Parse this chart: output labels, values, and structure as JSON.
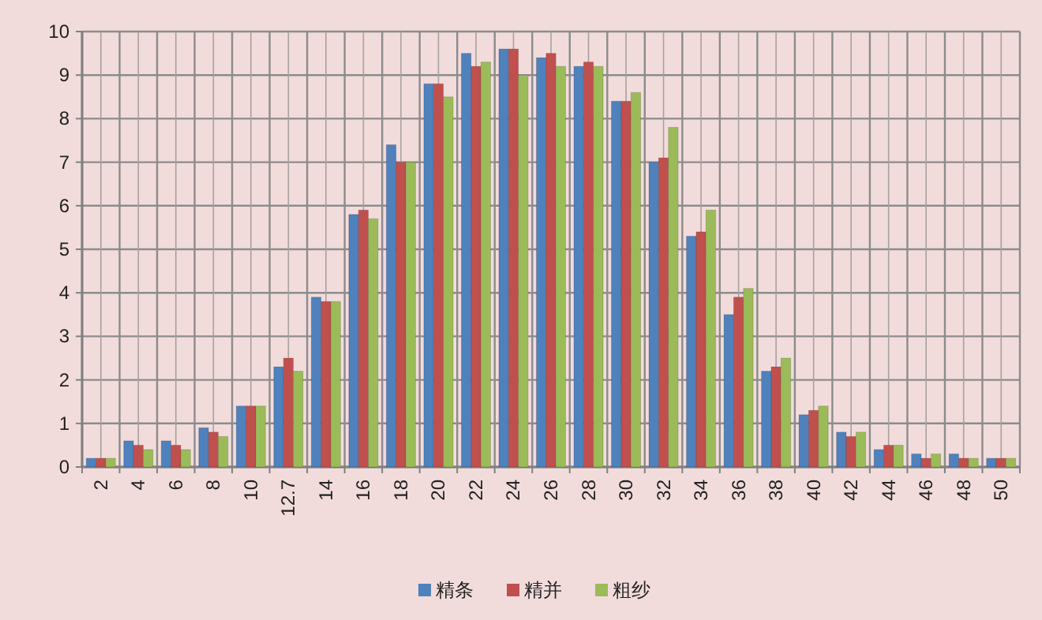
{
  "chart_data": {
    "type": "bar",
    "categories": [
      "2",
      "4",
      "6",
      "8",
      "10",
      "12.7",
      "14",
      "16",
      "18",
      "20",
      "22",
      "24",
      "26",
      "28",
      "30",
      "32",
      "34",
      "36",
      "38",
      "40",
      "42",
      "44",
      "46",
      "48",
      "50"
    ],
    "series": [
      {
        "name": "精条",
        "color": "#4f81bd",
        "values": [
          0.2,
          0.6,
          0.6,
          0.9,
          1.4,
          2.3,
          3.9,
          5.8,
          7.4,
          8.8,
          9.5,
          9.6,
          9.4,
          9.2,
          8.4,
          7.0,
          5.3,
          3.5,
          2.2,
          1.2,
          0.8,
          0.4,
          0.3,
          0.3,
          0.2
        ]
      },
      {
        "name": "精并",
        "color": "#c0504d",
        "values": [
          0.2,
          0.5,
          0.5,
          0.8,
          1.4,
          2.5,
          3.8,
          5.9,
          7.0,
          8.8,
          9.2,
          9.6,
          9.5,
          9.3,
          8.4,
          7.1,
          5.4,
          3.9,
          2.3,
          1.3,
          0.7,
          0.5,
          0.2,
          0.2,
          0.2
        ]
      },
      {
        "name": "粗纱",
        "color": "#9bbb59",
        "values": [
          0.2,
          0.4,
          0.4,
          0.7,
          1.4,
          2.2,
          3.8,
          5.7,
          7.0,
          8.5,
          9.3,
          9.0,
          9.2,
          9.2,
          8.6,
          7.8,
          5.9,
          4.1,
          2.5,
          1.4,
          0.8,
          0.5,
          0.3,
          0.2,
          0.2
        ]
      }
    ],
    "ylim": [
      0,
      10
    ],
    "yticks": [
      0,
      1,
      2,
      3,
      4,
      5,
      6,
      7,
      8,
      9,
      10
    ],
    "grid": true,
    "legend": "bottom"
  }
}
